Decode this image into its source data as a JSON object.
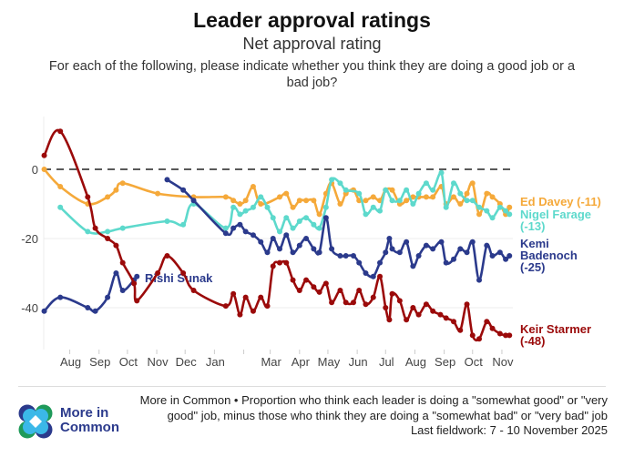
{
  "header": {
    "title": "Leader approval ratings",
    "subtitle": "Net approval rating",
    "question": "For each of the following, please indicate whether you think they are doing a good job or a bad job?"
  },
  "footer": {
    "logo_text": "More in Common",
    "logo_line1": "More in",
    "logo_line2": "Common",
    "note": "More in Common • Proportion who think each leader is doing a \"somewhat good\" or \"very good\" job, minus those who think they are doing a \"somewhat bad\" or \"very bad\" job",
    "fieldwork": "Last fieldwork: 7 - 10 November 2025"
  },
  "chart_data": {
    "type": "line",
    "title": "Leader approval ratings",
    "subtitle": "Net approval rating",
    "xlabel": "",
    "ylabel": "",
    "ylim": [
      -52,
      15
    ],
    "xlim": [
      "2024-07-01",
      "2025-11-20"
    ],
    "yticks": [
      0,
      -20,
      -40
    ],
    "ytick_labels": [
      "0",
      "-20",
      "-40"
    ],
    "xtick_labels": [
      {
        "date": "2024-08-01",
        "label": "Aug"
      },
      {
        "date": "2024-09-01",
        "label": "Sep"
      },
      {
        "date": "2024-10-01",
        "label": "Oct"
      },
      {
        "date": "2024-11-01",
        "label": "Nov"
      },
      {
        "date": "2024-12-01",
        "label": "Dec"
      },
      {
        "date": "2025-01-01",
        "label": "Jan"
      },
      {
        "date": "2025-02-01",
        "label": ""
      },
      {
        "date": "2025-03-01",
        "label": "Mar"
      },
      {
        "date": "2025-04-01",
        "label": "Apr"
      },
      {
        "date": "2025-05-01",
        "label": "May"
      },
      {
        "date": "2025-06-01",
        "label": "Jun"
      },
      {
        "date": "2025-07-01",
        "label": "Jul"
      },
      {
        "date": "2025-08-01",
        "label": "Aug"
      },
      {
        "date": "2025-09-01",
        "label": "Sep"
      },
      {
        "date": "2025-10-01",
        "label": "Oct"
      },
      {
        "date": "2025-11-01",
        "label": "Nov"
      }
    ],
    "reference_line": {
      "y": 0,
      "style": "dashed"
    },
    "grid": true,
    "legend": "direct labels at right",
    "series": [
      {
        "name": "Ed Davey",
        "label": "Ed Davey (-11)",
        "label_lines": [
          "Ed Davey (-11)"
        ],
        "color": "#f5a93a",
        "points": [
          [
            "2024-07-05",
            0
          ],
          [
            "2024-07-22",
            -5
          ],
          [
            "2024-08-20",
            -10
          ],
          [
            "2024-09-10",
            -8
          ],
          [
            "2024-09-19",
            -6
          ],
          [
            "2024-09-26",
            -4
          ],
          [
            "2024-11-02",
            -7
          ],
          [
            "2024-12-10",
            -8
          ],
          [
            "2025-01-13",
            -8
          ],
          [
            "2025-01-21",
            -9
          ],
          [
            "2025-01-28",
            -10
          ],
          [
            "2025-02-03",
            -9
          ],
          [
            "2025-02-11",
            -5
          ],
          [
            "2025-02-19",
            -10
          ],
          [
            "2025-03-11",
            -8
          ],
          [
            "2025-03-18",
            -7
          ],
          [
            "2025-03-25",
            -11
          ],
          [
            "2025-04-01",
            -9
          ],
          [
            "2025-04-08",
            -9
          ],
          [
            "2025-04-16",
            -9
          ],
          [
            "2025-04-22",
            -13
          ],
          [
            "2025-04-29",
            -7
          ],
          [
            "2025-05-05",
            -4
          ],
          [
            "2025-05-14",
            -10
          ],
          [
            "2025-05-20",
            -7
          ],
          [
            "2025-05-28",
            -6
          ],
          [
            "2025-06-03",
            -9
          ],
          [
            "2025-06-10",
            -9
          ],
          [
            "2025-06-18",
            -8
          ],
          [
            "2025-06-25",
            -9
          ],
          [
            "2025-07-01",
            -6
          ],
          [
            "2025-07-08",
            -6
          ],
          [
            "2025-07-16",
            -10
          ],
          [
            "2025-07-23",
            -9
          ],
          [
            "2025-07-30",
            -8
          ],
          [
            "2025-08-05",
            -8
          ],
          [
            "2025-08-13",
            -8
          ],
          [
            "2025-08-20",
            -8
          ],
          [
            "2025-08-29",
            -5
          ],
          [
            "2025-09-03",
            -10
          ],
          [
            "2025-09-11",
            -8
          ],
          [
            "2025-09-18",
            -10
          ],
          [
            "2025-09-25",
            -7
          ],
          [
            "2025-10-01",
            -4
          ],
          [
            "2025-10-08",
            -13
          ],
          [
            "2025-10-16",
            -7
          ],
          [
            "2025-10-22",
            -8
          ],
          [
            "2025-10-30",
            -10
          ],
          [
            "2025-11-05",
            -13
          ],
          [
            "2025-11-09",
            -11
          ]
        ]
      },
      {
        "name": "Nigel Farage",
        "label": "Nigel Farage (-13)",
        "label_lines": [
          "Nigel Farage",
          "(-13)"
        ],
        "color": "#5dd9cc",
        "points": [
          [
            "2024-07-22",
            -11
          ],
          [
            "2024-08-20",
            -18
          ],
          [
            "2024-09-10",
            -18
          ],
          [
            "2024-09-26",
            -17
          ],
          [
            "2024-11-12",
            -15
          ],
          [
            "2024-11-29",
            -16
          ],
          [
            "2024-12-10",
            -10
          ],
          [
            "2025-01-13",
            -17
          ],
          [
            "2025-01-21",
            -11
          ],
          [
            "2025-01-28",
            -13
          ],
          [
            "2025-02-03",
            -12
          ],
          [
            "2025-02-11",
            -11
          ],
          [
            "2025-02-19",
            -8
          ],
          [
            "2025-02-26",
            -11
          ],
          [
            "2025-03-04",
            -14
          ],
          [
            "2025-03-11",
            -18
          ],
          [
            "2025-03-18",
            -14
          ],
          [
            "2025-03-25",
            -17
          ],
          [
            "2025-04-01",
            -15
          ],
          [
            "2025-04-08",
            -14
          ],
          [
            "2025-04-16",
            -16
          ],
          [
            "2025-04-22",
            -17
          ],
          [
            "2025-04-29",
            -11
          ],
          [
            "2025-05-05",
            -3
          ],
          [
            "2025-05-14",
            -4
          ],
          [
            "2025-05-20",
            -6
          ],
          [
            "2025-06-03",
            -7
          ],
          [
            "2025-06-10",
            -13
          ],
          [
            "2025-06-18",
            -11
          ],
          [
            "2025-06-25",
            -12
          ],
          [
            "2025-07-01",
            -6
          ],
          [
            "2025-07-08",
            -9
          ],
          [
            "2025-07-16",
            -9
          ],
          [
            "2025-07-23",
            -6
          ],
          [
            "2025-07-30",
            -10
          ],
          [
            "2025-08-05",
            -7
          ],
          [
            "2025-08-13",
            -4
          ],
          [
            "2025-08-20",
            -6
          ],
          [
            "2025-08-29",
            -1
          ],
          [
            "2025-09-03",
            -11
          ],
          [
            "2025-09-11",
            -4
          ],
          [
            "2025-09-18",
            -7
          ],
          [
            "2025-09-25",
            -9
          ],
          [
            "2025-10-01",
            -9
          ],
          [
            "2025-10-08",
            -11
          ],
          [
            "2025-10-16",
            -12
          ],
          [
            "2025-10-22",
            -14
          ],
          [
            "2025-10-30",
            -11
          ],
          [
            "2025-11-05",
            -12
          ],
          [
            "2025-11-09",
            -13
          ]
        ]
      },
      {
        "name": "Kemi Badenoch",
        "label": "Kemi Badenoch (-25)",
        "label_lines": [
          "Kemi",
          "Badenoch",
          "(-25)"
        ],
        "color": "#2b3a8c",
        "points": [
          [
            "2024-11-12",
            -3
          ],
          [
            "2024-11-29",
            -6
          ],
          [
            "2024-12-10",
            -9
          ],
          [
            "2025-01-13",
            -18.5
          ],
          [
            "2025-01-21",
            -17
          ],
          [
            "2025-01-28",
            -16
          ],
          [
            "2025-02-03",
            -18
          ],
          [
            "2025-02-11",
            -19
          ],
          [
            "2025-02-19",
            -21
          ],
          [
            "2025-02-26",
            -24
          ],
          [
            "2025-03-04",
            -20
          ],
          [
            "2025-03-11",
            -23
          ],
          [
            "2025-03-18",
            -19
          ],
          [
            "2025-03-25",
            -24
          ],
          [
            "2025-04-01",
            -22
          ],
          [
            "2025-04-08",
            -20
          ],
          [
            "2025-04-16",
            -23
          ],
          [
            "2025-04-22",
            -24
          ],
          [
            "2025-04-29",
            -14
          ],
          [
            "2025-05-05",
            -23
          ],
          [
            "2025-05-14",
            -25
          ],
          [
            "2025-05-20",
            -25
          ],
          [
            "2025-05-28",
            -25
          ],
          [
            "2025-06-03",
            -27
          ],
          [
            "2025-06-10",
            -30
          ],
          [
            "2025-06-18",
            -31
          ],
          [
            "2025-06-25",
            -27
          ],
          [
            "2025-07-01",
            -24
          ],
          [
            "2025-07-05",
            -20
          ],
          [
            "2025-07-08",
            -23
          ],
          [
            "2025-07-16",
            -24
          ],
          [
            "2025-07-23",
            -21
          ],
          [
            "2025-07-30",
            -28
          ],
          [
            "2025-08-05",
            -25
          ],
          [
            "2025-08-13",
            -22
          ],
          [
            "2025-08-20",
            -23
          ],
          [
            "2025-08-29",
            -21
          ],
          [
            "2025-09-03",
            -27
          ],
          [
            "2025-09-11",
            -26
          ],
          [
            "2025-09-18",
            -23
          ],
          [
            "2025-09-25",
            -24
          ],
          [
            "2025-10-01",
            -21
          ],
          [
            "2025-10-08",
            -32
          ],
          [
            "2025-10-16",
            -22
          ],
          [
            "2025-10-22",
            -25
          ],
          [
            "2025-10-30",
            -24
          ],
          [
            "2025-11-05",
            -26
          ],
          [
            "2025-11-09",
            -25
          ]
        ]
      },
      {
        "name": "Rishi Sunak",
        "label": "Rishi Sunak",
        "label_lines": [
          "Rishi Sunak"
        ],
        "color": "#2b3a8c",
        "points": [
          [
            "2024-07-05",
            -41
          ],
          [
            "2024-07-22",
            -37
          ],
          [
            "2024-08-20",
            -40
          ],
          [
            "2024-08-28",
            -41
          ],
          [
            "2024-09-10",
            -37
          ],
          [
            "2024-09-19",
            -30
          ],
          [
            "2024-09-26",
            -35
          ],
          [
            "2024-10-08",
            -32
          ],
          [
            "2024-10-11",
            -31
          ]
        ]
      },
      {
        "name": "Keir Starmer",
        "label": "Keir Starmer (-48)",
        "label_lines": [
          "Keir Starmer",
          "(-48)"
        ],
        "color": "#9b0a0a",
        "points": [
          [
            "2024-07-05",
            4
          ],
          [
            "2024-07-22",
            11
          ],
          [
            "2024-08-20",
            -8
          ],
          [
            "2024-08-28",
            -17
          ],
          [
            "2024-09-10",
            -20
          ],
          [
            "2024-09-19",
            -22
          ],
          [
            "2024-09-26",
            -27
          ],
          [
            "2024-10-08",
            -33
          ],
          [
            "2024-10-11",
            -38
          ],
          [
            "2024-11-02",
            -30
          ],
          [
            "2024-11-12",
            -25
          ],
          [
            "2024-11-29",
            -30
          ],
          [
            "2024-12-10",
            -35
          ],
          [
            "2025-01-13",
            -39.5
          ],
          [
            "2025-01-21",
            -36
          ],
          [
            "2025-01-28",
            -42
          ],
          [
            "2025-02-03",
            -37
          ],
          [
            "2025-02-11",
            -41
          ],
          [
            "2025-02-19",
            -37
          ],
          [
            "2025-02-26",
            -39.5
          ],
          [
            "2025-03-04",
            -28
          ],
          [
            "2025-03-11",
            -27
          ],
          [
            "2025-03-18",
            -27
          ],
          [
            "2025-03-25",
            -32
          ],
          [
            "2025-04-01",
            -35
          ],
          [
            "2025-04-08",
            -32
          ],
          [
            "2025-04-16",
            -34
          ],
          [
            "2025-04-22",
            -35.5
          ],
          [
            "2025-04-29",
            -33
          ],
          [
            "2025-05-05",
            -38.5
          ],
          [
            "2025-05-14",
            -35
          ],
          [
            "2025-05-20",
            -38.5
          ],
          [
            "2025-05-28",
            -38.5
          ],
          [
            "2025-06-03",
            -35
          ],
          [
            "2025-06-10",
            -39
          ],
          [
            "2025-06-18",
            -37
          ],
          [
            "2025-06-25",
            -31
          ],
          [
            "2025-07-01",
            -40
          ],
          [
            "2025-07-05",
            -43.5
          ],
          [
            "2025-07-08",
            -36
          ],
          [
            "2025-07-16",
            -38
          ],
          [
            "2025-07-23",
            -43.5
          ],
          [
            "2025-07-30",
            -40
          ],
          [
            "2025-08-05",
            -42
          ],
          [
            "2025-08-13",
            -39
          ],
          [
            "2025-08-20",
            -41
          ],
          [
            "2025-08-28",
            -42
          ],
          [
            "2025-09-03",
            -43
          ],
          [
            "2025-09-11",
            -44
          ],
          [
            "2025-09-18",
            -46.5
          ],
          [
            "2025-09-25",
            -39
          ],
          [
            "2025-10-01",
            -48
          ],
          [
            "2025-10-08",
            -49
          ],
          [
            "2025-10-16",
            -44
          ],
          [
            "2025-10-22",
            -46
          ],
          [
            "2025-10-30",
            -47.5
          ],
          [
            "2025-11-05",
            -48
          ],
          [
            "2025-11-09",
            -48
          ]
        ]
      }
    ]
  }
}
